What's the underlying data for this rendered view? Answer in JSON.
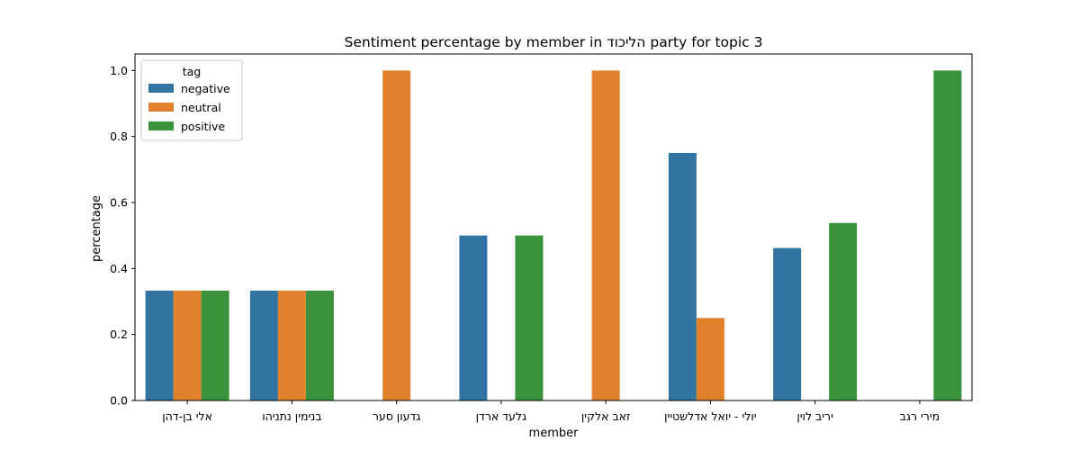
{
  "chart_data": {
    "type": "bar",
    "title": "Sentiment percentage by member in הליכוד party for topic 3",
    "xlabel": "member",
    "ylabel": "percentage",
    "ylim": [
      0,
      1.05
    ],
    "yticks": [
      "0.0",
      "0.2",
      "0.4",
      "0.6",
      "0.8",
      "1.0"
    ],
    "grid": false,
    "legend": {
      "title": "tag",
      "placement": "top-left"
    },
    "categories": [
      "אלי בן-דהן",
      "בנימין נתניהו",
      "גדעון סער",
      "גלעד ארדן",
      "זאב אלקין",
      "יולי - יואל אדלשטיין",
      "יריב לוין",
      "מירי רגב"
    ],
    "series": [
      {
        "name": "negative",
        "color": "#3274a1",
        "values": [
          0.333,
          0.333,
          null,
          0.5,
          null,
          0.75,
          0.462,
          null
        ]
      },
      {
        "name": "neutral",
        "color": "#e1812c",
        "values": [
          0.333,
          0.333,
          1.0,
          null,
          1.0,
          0.25,
          null,
          null
        ]
      },
      {
        "name": "positive",
        "color": "#3a923a",
        "values": [
          0.333,
          0.333,
          null,
          0.5,
          null,
          null,
          0.538,
          1.0
        ]
      }
    ]
  }
}
